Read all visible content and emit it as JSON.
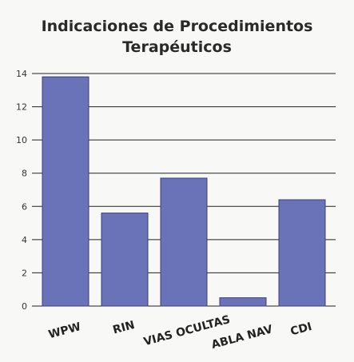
{
  "chart_data": {
    "type": "bar",
    "title": [
      "Indicaciones de Procedimientos",
      "Terapéuticos"
    ],
    "xlabel": "",
    "ylabel": "",
    "categories": [
      "WPW",
      "RIN",
      "VIAS OCULTAS",
      "ABLA NAV",
      "CDI"
    ],
    "values": [
      13.8,
      5.6,
      7.7,
      0.5,
      6.4
    ],
    "ylim": [
      0,
      14
    ],
    "yticks": [
      "0",
      "2",
      "4",
      "6",
      "8",
      "10",
      "12",
      "14"
    ],
    "grid": true,
    "bar_color": "#6b73b8",
    "bar_stroke": "#3a3f75"
  }
}
